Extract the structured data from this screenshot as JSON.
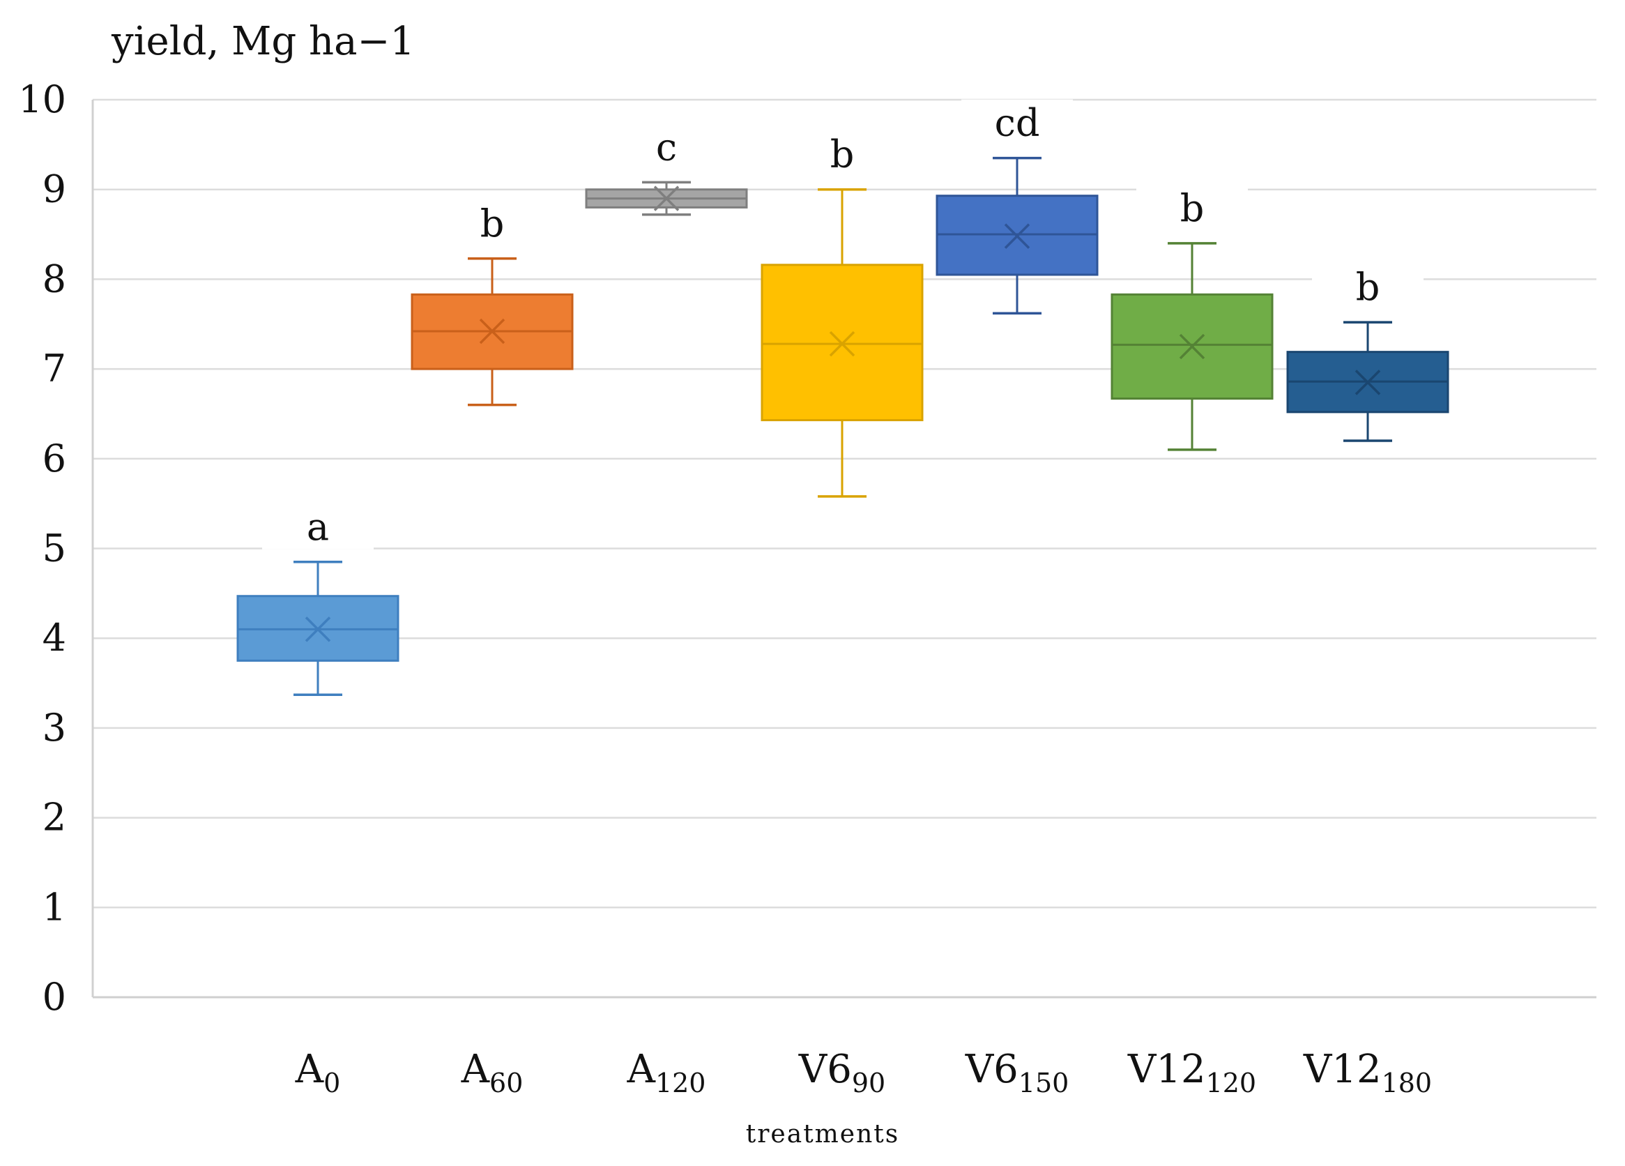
{
  "chart_data": {
    "type": "box",
    "title": "",
    "ylabel": "yield, Mg ha−1",
    "xlabel": "treatments",
    "ylim": [
      0,
      10
    ],
    "yticks": [
      "0",
      "1",
      "2",
      "3",
      "4",
      "5",
      "6",
      "7",
      "8",
      "9",
      "10"
    ],
    "grid": true,
    "series": [
      {
        "name": "A0",
        "label_main": "A",
        "label_sub": "0",
        "letter": "a",
        "color": "#5B9BD5",
        "edge": "#3F7FBF",
        "min": 3.37,
        "q1": 3.75,
        "median": 4.1,
        "q3": 4.47,
        "max": 4.85,
        "mean": 4.1
      },
      {
        "name": "A60",
        "label_main": "A",
        "label_sub": "60",
        "letter": "b",
        "color": "#ED7D31",
        "edge": "#C9601A",
        "min": 6.6,
        "q1": 7.0,
        "median": 7.42,
        "q3": 7.83,
        "max": 8.23,
        "mean": 7.42
      },
      {
        "name": "A120",
        "label_main": "A",
        "label_sub": "120",
        "letter": "c",
        "color": "#A5A5A5",
        "edge": "#7F7F7F",
        "min": 8.72,
        "q1": 8.8,
        "median": 8.9,
        "q3": 9.0,
        "max": 9.08,
        "mean": 8.9
      },
      {
        "name": "V690",
        "label_main": "V6",
        "label_sub": "90",
        "letter": "b",
        "color": "#FFC000",
        "edge": "#D9A300",
        "min": 5.58,
        "q1": 6.43,
        "median": 7.28,
        "q3": 8.16,
        "max": 9.0,
        "mean": 7.28
      },
      {
        "name": "V6150",
        "label_main": "V6",
        "label_sub": "150",
        "letter": "cd",
        "color": "#4472C4",
        "edge": "#2F5597",
        "min": 7.62,
        "q1": 8.05,
        "median": 8.5,
        "q3": 8.93,
        "max": 9.35,
        "mean": 8.48
      },
      {
        "name": "V12120",
        "label_main": "V12",
        "label_sub": "120",
        "letter": "b",
        "color": "#70AD47",
        "edge": "#548235",
        "min": 6.1,
        "q1": 6.67,
        "median": 7.27,
        "q3": 7.83,
        "max": 8.4,
        "mean": 7.25
      },
      {
        "name": "V12180",
        "label_main": "V12",
        "label_sub": "180",
        "letter": "b",
        "color": "#255E91",
        "edge": "#1A4670",
        "min": 6.2,
        "q1": 6.52,
        "median": 6.86,
        "q3": 7.19,
        "max": 7.52,
        "mean": 6.85
      }
    ]
  }
}
